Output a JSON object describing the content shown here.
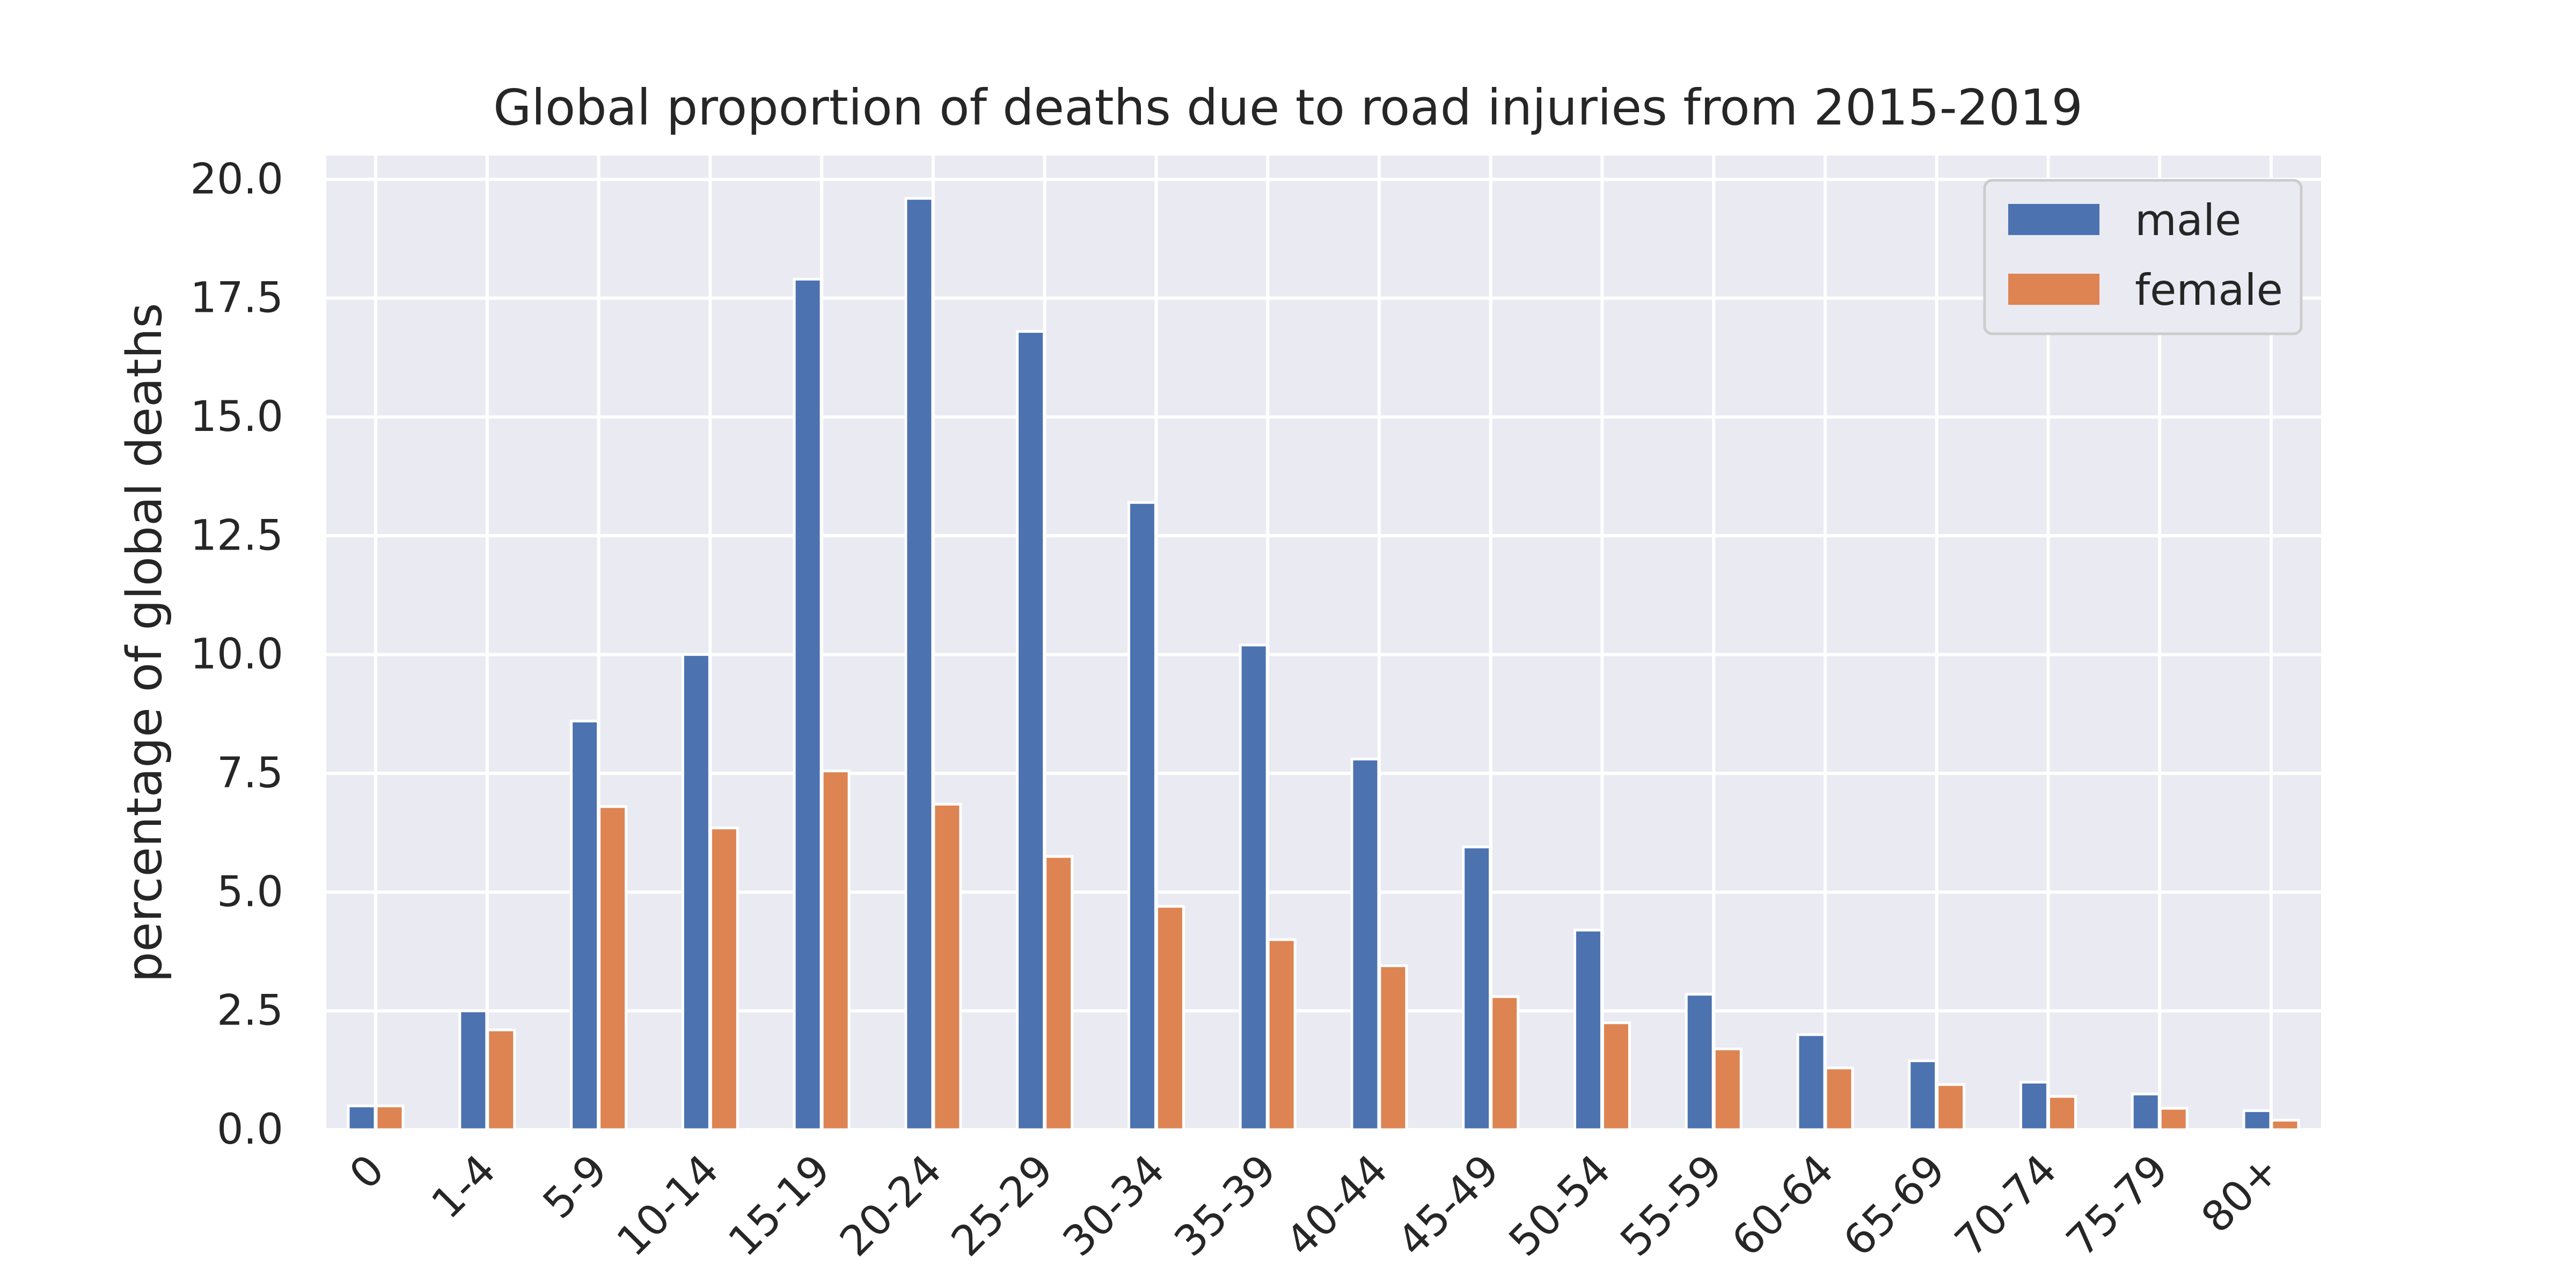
{
  "chart_data": {
    "type": "bar",
    "title": "Global proportion of deaths due to road injuries from 2015-2019",
    "xlabel": "",
    "ylabel": "percentage of global deaths",
    "categories": [
      "0",
      "1-4",
      "5-9",
      "10-14",
      "15-19",
      "20-24",
      "25-29",
      "30-34",
      "35-39",
      "40-44",
      "45-49",
      "50-54",
      "55-59",
      "60-64",
      "65-69",
      "70-74",
      "75-79",
      "80+"
    ],
    "series": [
      {
        "name": "male",
        "color": "#4c72b0",
        "values": [
          0.5,
          2.5,
          8.6,
          10.0,
          17.9,
          19.6,
          16.8,
          13.2,
          10.2,
          7.8,
          5.95,
          4.2,
          2.85,
          2.0,
          1.45,
          1.0,
          0.75,
          0.4
        ]
      },
      {
        "name": "female",
        "color": "#dd8452",
        "values": [
          0.5,
          2.1,
          6.8,
          6.35,
          7.55,
          6.85,
          5.75,
          4.7,
          4.0,
          3.45,
          2.8,
          2.25,
          1.7,
          1.3,
          0.95,
          0.7,
          0.45,
          0.2
        ]
      }
    ],
    "ylim": [
      0,
      20.5
    ],
    "yticks": [
      "0.0",
      "2.5",
      "5.0",
      "7.5",
      "10.0",
      "12.5",
      "15.0",
      "17.5",
      "20.0"
    ],
    "grid": true,
    "legend_position": "top-right",
    "background_color": "#eaeaf2",
    "grid_color": "#ffffff"
  }
}
